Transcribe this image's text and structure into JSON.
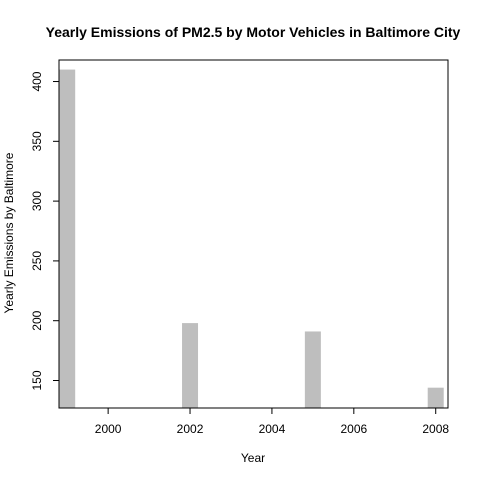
{
  "chart_data": {
    "type": "bar",
    "title": "Yearly Emissions of PM2.5 by Motor Vehicles in Baltimore City",
    "xlabel": "Year",
    "ylabel": "Yearly Emissions by Baltimore",
    "x": [
      1999,
      2002,
      2005,
      2008
    ],
    "values": [
      410,
      198,
      191,
      144
    ],
    "xlim": [
      1998.8,
      2008.3
    ],
    "ylim": [
      127,
      418
    ],
    "x_ticks": [
      "2000",
      "2002",
      "2004",
      "2006",
      "2008"
    ],
    "y_ticks": [
      "150",
      "200",
      "250",
      "300",
      "350",
      "400"
    ],
    "bar_color": "#bebebe",
    "grid": false
  }
}
